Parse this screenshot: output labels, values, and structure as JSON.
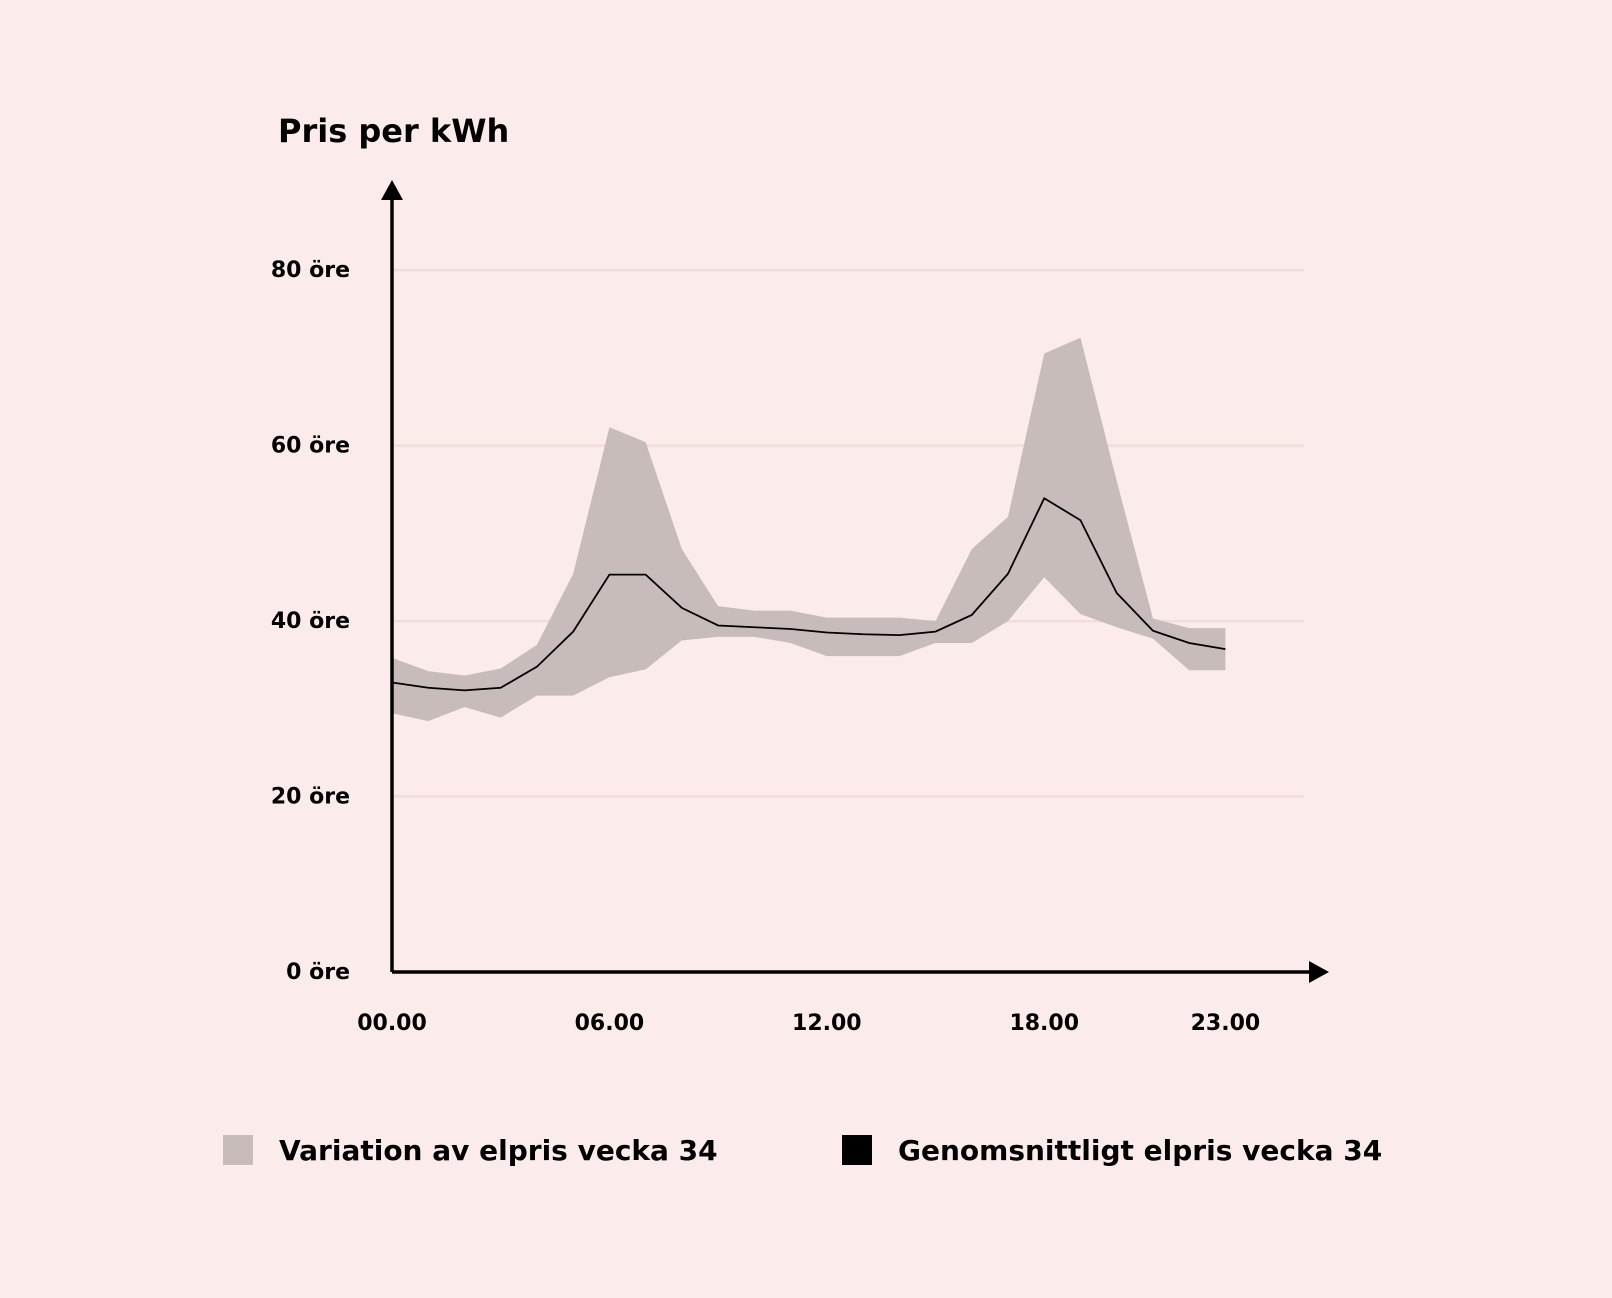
{
  "colors": {
    "background": "#fbeceb",
    "band": "#c8bcbb",
    "line": "#000000",
    "grid": "#f0dcdb"
  },
  "chart_data": {
    "type": "area",
    "ylabel": "Pris per kWh",
    "xlabel": "",
    "ylim": [
      0,
      88
    ],
    "xlim": [
      0,
      25.5
    ],
    "grid": true,
    "yticks": [
      0,
      20,
      40,
      60,
      80
    ],
    "ytick_labels": [
      "0 öre",
      "20 öre",
      "40 öre",
      "60 öre",
      "80 öre"
    ],
    "xticks": [
      0,
      6,
      12,
      18,
      23
    ],
    "xtick_labels": [
      "00.00",
      "06.00",
      "12.00",
      "18.00",
      "23.00"
    ],
    "legend_position": "bottom",
    "x": [
      0,
      1,
      2,
      3,
      4,
      5,
      6,
      7,
      8,
      9,
      10,
      11,
      12,
      13,
      14,
      15,
      16,
      17,
      18,
      19,
      20,
      21,
      22,
      23
    ],
    "series": [
      {
        "name": "Variation av elpris vecka 34",
        "kind": "band",
        "lower": [
          29.5,
          28.6,
          30.2,
          29.0,
          31.5,
          31.5,
          33.6,
          34.5,
          37.8,
          38.2,
          38.2,
          37.5,
          36.0,
          36.0,
          36.0,
          37.5,
          37.5,
          40.0,
          45.0,
          40.8,
          39.3,
          38.0,
          34.4,
          34.4
        ],
        "upper": [
          35.8,
          34.3,
          33.8,
          34.6,
          37.3,
          45.4,
          62.1,
          60.4,
          48.2,
          41.7,
          41.2,
          41.2,
          40.4,
          40.4,
          40.4,
          40.0,
          48.2,
          51.9,
          70.5,
          72.3,
          56.0,
          40.3,
          39.2,
          39.2
        ]
      },
      {
        "name": "Genomsnittligt elpris vecka 34",
        "kind": "line",
        "values": [
          33.0,
          32.4,
          32.1,
          32.4,
          34.8,
          38.8,
          45.3,
          45.3,
          41.5,
          39.5,
          39.3,
          39.1,
          38.7,
          38.5,
          38.4,
          38.8,
          40.7,
          45.4,
          54.0,
          51.5,
          43.2,
          38.9,
          37.5,
          36.8
        ]
      }
    ]
  }
}
